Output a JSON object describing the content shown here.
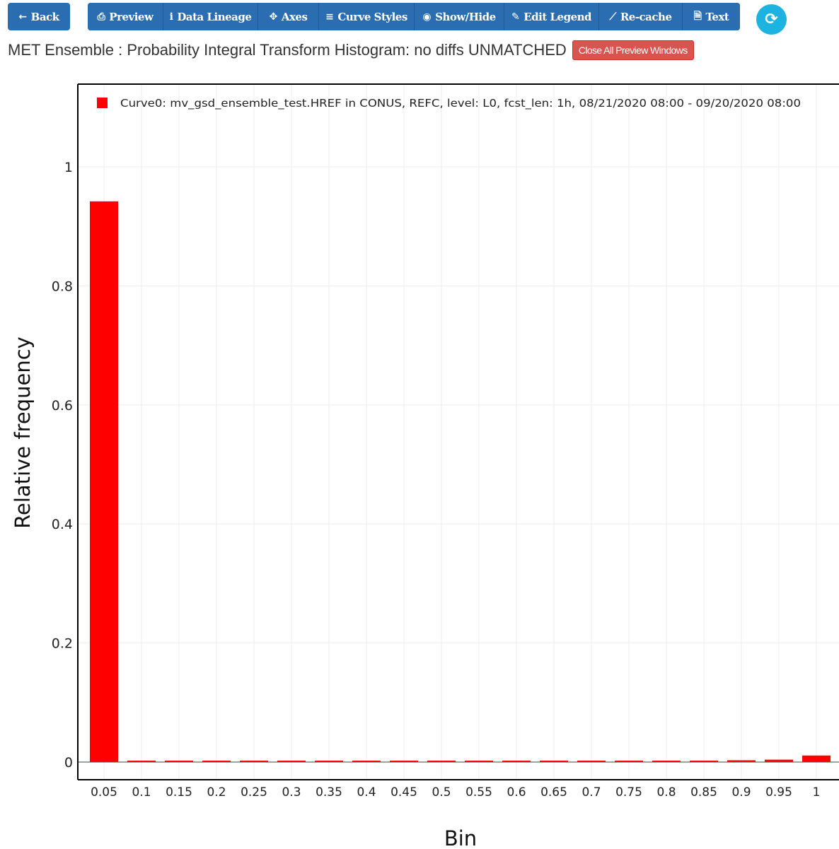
{
  "toolbar": {
    "back": "Back",
    "preview": "Preview",
    "data_lineage": "Data Lineage",
    "axes": "Axes",
    "curve_styles": "Curve Styles",
    "show_hide": "Show/Hide",
    "edit_legend": "Edit Legend",
    "recache": "Re-cache",
    "text": "Text"
  },
  "title_row": {
    "title": "MET Ensemble : Probability Integral Transform Histogram: no diffs UNMATCHED",
    "close_all": "Close All Preview Windows"
  },
  "colors": {
    "toolbar_blue": "#2a6db0",
    "refresh_cyan": "#1cb3e0",
    "close_red": "#d9534f",
    "bar_red": "#ff0000"
  },
  "chart_data": {
    "type": "bar",
    "xlabel": "Bin",
    "ylabel": "Relative frequency",
    "categories": [
      "0.05",
      "0.1",
      "0.15",
      "0.2",
      "0.25",
      "0.3",
      "0.35",
      "0.4",
      "0.45",
      "0.5",
      "0.55",
      "0.6",
      "0.65",
      "0.7",
      "0.75",
      "0.8",
      "0.85",
      "0.9",
      "0.95",
      "1"
    ],
    "series": [
      {
        "name": "Curve0: mv_gsd_ensemble_test.HREF in CONUS, REFC, level: L0, fcst_len: 1h, 08/21/2020 08:00 - 09/20/2020 08:00",
        "color": "#ff0000",
        "values": [
          0.942,
          0.002,
          0.001,
          0.001,
          0.001,
          0.001,
          0.001,
          0.001,
          0.001,
          0.001,
          0.001,
          0.001,
          0.001,
          0.001,
          0.002,
          0.002,
          0.002,
          0.003,
          0.004,
          0.011
        ]
      }
    ],
    "ylim": [
      -0.03,
      1.13
    ],
    "yticks": [
      "0",
      "0.2",
      "0.4",
      "0.6",
      "0.8",
      "1"
    ],
    "grid": true,
    "legend": "top-left"
  }
}
